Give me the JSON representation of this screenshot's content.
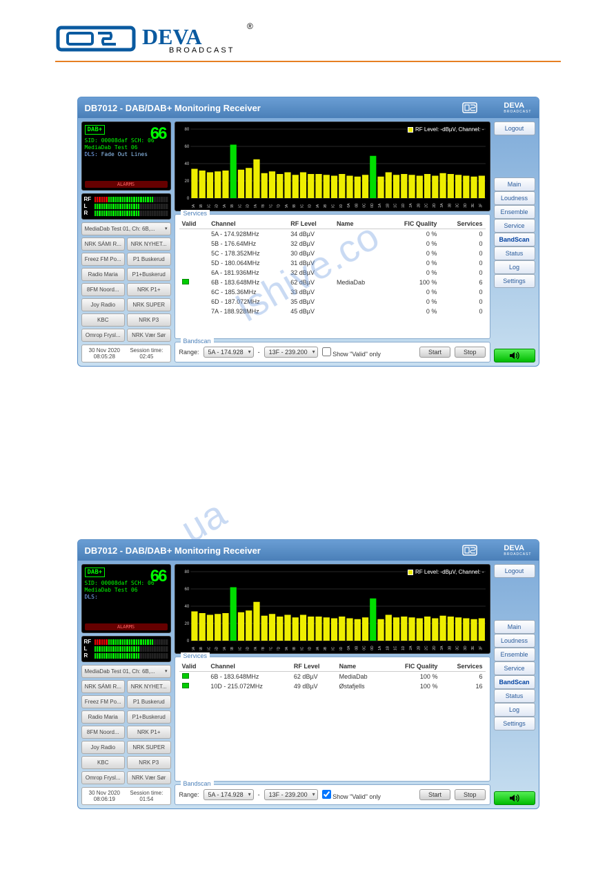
{
  "brand": {
    "name": "DEVA",
    "sub": "BROADCAST"
  },
  "receiver_title": "DB7012 - DAB/DAB+ Monitoring Receiver",
  "lcd": {
    "dab_label": "DAB+",
    "big": "66",
    "sid": "SID: 00008daf  SCH: 06",
    "media": "MediaDab Test 06",
    "dls_prefix": "DLS: ",
    "dls_1": "Fade Out Lines",
    "dls_2": "",
    "alarms": "ALARMS"
  },
  "meters": {
    "rf": {
      "label": "RF",
      "red": 6,
      "green": 20,
      "off": 6
    },
    "l": {
      "label": "L",
      "green": 20,
      "off": 12
    },
    "r": {
      "label": "R",
      "green": 20,
      "off": 12
    }
  },
  "presets": {
    "dropdown": "MediaDab Test 01, Ch: 6B,...",
    "rows": [
      [
        "NRK SÁMI R...",
        "NRK NYHET..."
      ],
      [
        "Freez FM Po...",
        "P1 Buskerud"
      ],
      [
        "Radio Maria",
        "P1+Buskerud"
      ],
      [
        "8FM Noord...",
        "NRK P1+"
      ],
      [
        "Joy Radio",
        "NRK SUPER"
      ],
      [
        "KBC",
        "NRK P3"
      ],
      [
        "Omrop Frysl...",
        "NRK Vær Sør"
      ]
    ]
  },
  "status1": {
    "date": "30 Nov 2020",
    "time": "08:05:28",
    "sess_lbl": "Session time:",
    "sess": "02:45"
  },
  "status2": {
    "date": "30 Nov 2020",
    "time": "08:06:19",
    "sess_lbl": "Session time:",
    "sess": "01:54"
  },
  "chart": {
    "legend": "RF Level: -dBµV, Channel: -",
    "y_ticks": [
      0,
      20,
      40,
      60,
      80
    ],
    "channels": [
      "5A",
      "5B",
      "5C",
      "5D",
      "6A",
      "6B",
      "6C",
      "6D",
      "7A",
      "7B",
      "7C",
      "7D",
      "8A",
      "8B",
      "8C",
      "8D",
      "9A",
      "9B",
      "9C",
      "9D",
      "10A",
      "10B",
      "10C",
      "10D",
      "11A",
      "11B",
      "11C",
      "11D",
      "12A",
      "12B",
      "12C",
      "12D",
      "13A",
      "13B",
      "13C",
      "13D",
      "13E",
      "13F"
    ],
    "values": [
      34,
      32,
      30,
      31,
      32,
      62,
      33,
      35,
      45,
      29,
      31,
      28,
      30,
      27,
      30,
      28,
      28,
      27,
      26,
      28,
      26,
      25,
      27,
      49,
      25,
      30,
      27,
      28,
      27,
      26,
      28,
      26,
      29,
      28,
      27,
      26,
      25,
      26
    ],
    "highlight_idx": [
      5,
      23
    ],
    "bar_color": "#eeee00",
    "hl_color": "#00dd00",
    "bg": "#000000",
    "axis_color": "#888888"
  },
  "services": {
    "title": "Services",
    "cols": [
      "Valid",
      "Channel",
      "RF Level",
      "Name",
      "FIC Quality",
      "Services"
    ],
    "rows1": [
      {
        "valid": false,
        "ch": "5A - 174.928MHz",
        "rf": "34 dBµV",
        "name": "",
        "fic": "0 %",
        "svc": "0"
      },
      {
        "valid": false,
        "ch": "5B - 176.64MHz",
        "rf": "32 dBµV",
        "name": "",
        "fic": "0 %",
        "svc": "0"
      },
      {
        "valid": false,
        "ch": "5C - 178.352MHz",
        "rf": "30 dBµV",
        "name": "",
        "fic": "0 %",
        "svc": "0"
      },
      {
        "valid": false,
        "ch": "5D - 180.064MHz",
        "rf": "31 dBµV",
        "name": "",
        "fic": "0 %",
        "svc": "0"
      },
      {
        "valid": false,
        "ch": "6A - 181.936MHz",
        "rf": "32 dBµV",
        "name": "",
        "fic": "0 %",
        "svc": "0"
      },
      {
        "valid": true,
        "ch": "6B - 183.648MHz",
        "rf": "62 dBµV",
        "name": "MediaDab",
        "fic": "100 %",
        "svc": "6"
      },
      {
        "valid": false,
        "ch": "6C - 185.36MHz",
        "rf": "33 dBµV",
        "name": "",
        "fic": "0 %",
        "svc": "0"
      },
      {
        "valid": false,
        "ch": "6D - 187.072MHz",
        "rf": "35 dBµV",
        "name": "",
        "fic": "0 %",
        "svc": "0"
      },
      {
        "valid": false,
        "ch": "7A - 188.928MHz",
        "rf": "45 dBµV",
        "name": "",
        "fic": "0 %",
        "svc": "0"
      }
    ],
    "rows2": [
      {
        "valid": true,
        "ch": "6B - 183.648MHz",
        "rf": "62 dBµV",
        "name": "MediaDab",
        "fic": "100 %",
        "svc": "6"
      },
      {
        "valid": true,
        "ch": "10D - 215.072MHz",
        "rf": "49 dBµV",
        "name": "Østafjells",
        "fic": "100 %",
        "svc": "16"
      }
    ]
  },
  "bandscan": {
    "title": "Bandscan",
    "range_lbl": "Range:",
    "from": "5A - 174.928",
    "to": "13F - 239.200",
    "valid_only": "Show \"Valid\" only",
    "start": "Start",
    "stop": "Stop"
  },
  "nav": {
    "logout": "Logout",
    "items": [
      "Main",
      "Loudness",
      "Ensemble",
      "Service",
      "BandScan",
      "Status",
      "Log",
      "Settings"
    ]
  }
}
